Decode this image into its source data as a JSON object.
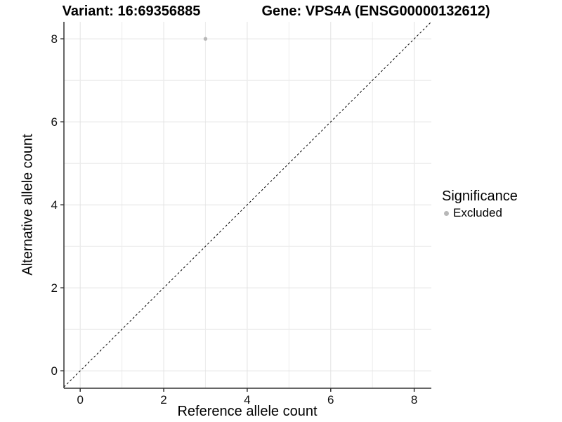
{
  "header": {
    "variant_title": "Variant: 16:69356885",
    "gene_title": "Gene: VPS4A (ENSG00000132612)"
  },
  "chart_data": {
    "type": "scatter",
    "xlabel": "Reference allele count",
    "ylabel": "Alternative allele count",
    "xlim": [
      -0.39,
      8.41
    ],
    "ylim": [
      -0.42,
      8.41
    ],
    "xticks": [
      0,
      2,
      4,
      6,
      8
    ],
    "yticks": [
      0,
      2,
      4,
      6,
      8
    ],
    "xgrid": [
      0,
      1,
      2,
      3,
      4,
      5,
      6,
      7,
      8
    ],
    "ygrid": [
      0,
      1,
      2,
      3,
      4,
      5,
      6,
      7,
      8
    ],
    "grid": true,
    "identity_line": {
      "style": "dashed",
      "color": "#000000",
      "from": -0.39,
      "to": 8.41
    },
    "points": [
      {
        "x": 3,
        "y": 8,
        "series": "Excluded"
      }
    ],
    "series": [
      {
        "name": "Excluded",
        "color": "#b8b8b8"
      }
    ],
    "legend": {
      "position": "right",
      "title": "Significance",
      "items": [
        {
          "label": "Excluded",
          "color": "#b8b8b8"
        }
      ]
    }
  },
  "colors": {
    "grid_major": "#e2e2e2",
    "grid_minor": "#ececec",
    "axis_line": "#333333",
    "tick_mark": "#333333",
    "point": "#b8b8b8",
    "dashed_line": "#000000"
  }
}
